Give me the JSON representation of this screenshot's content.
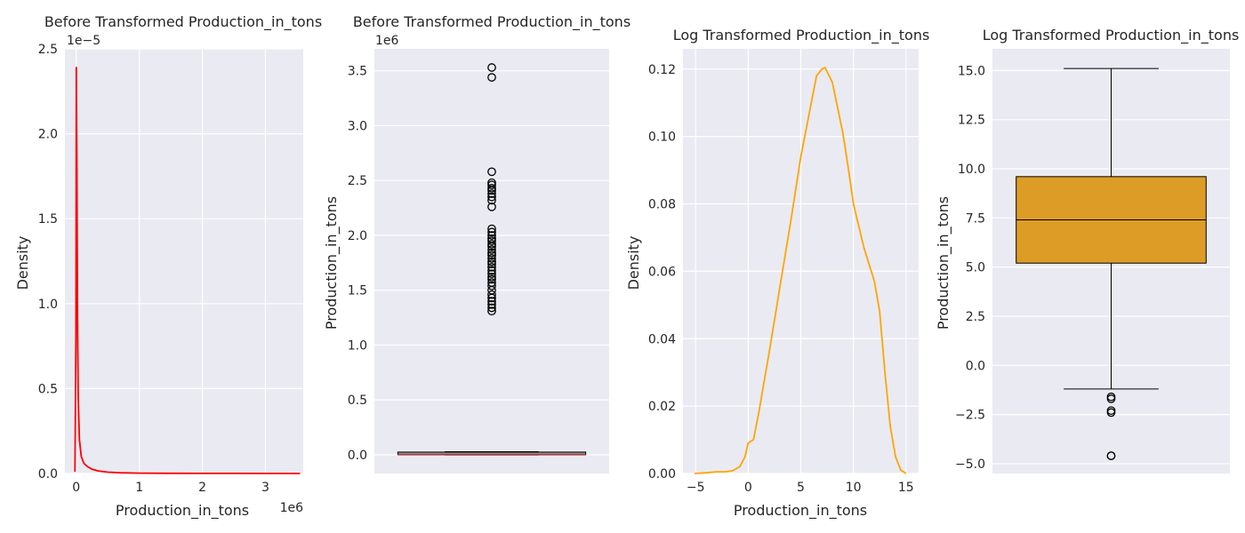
{
  "chart_data": [
    {
      "type": "line",
      "title": "Before Transformed Production_in_tons",
      "xlabel": "Production_in_tons",
      "ylabel": "Density",
      "x_offset_label": "1e6",
      "y_offset_label": "1e−5",
      "x_ticks": [
        0,
        1,
        2,
        3
      ],
      "x_tick_labels": [
        "0",
        "1",
        "2",
        "3"
      ],
      "y_ticks": [
        0,
        0.5,
        1.0,
        1.5,
        2.0,
        2.5
      ],
      "y_tick_labels": [
        "0.0",
        "0.5",
        "1.0",
        "1.5",
        "2.0",
        "2.5"
      ],
      "xlim": [
        -0.18,
        3.6
      ],
      "ylim": [
        0,
        2.5
      ],
      "grid": true,
      "color": "#ff0000",
      "series": [
        {
          "x": [
            -0.02,
            -0.005,
            0.0,
            0.01,
            0.02,
            0.03,
            0.05,
            0.08,
            0.12,
            0.18,
            0.25,
            0.35,
            0.5,
            0.7,
            1.0,
            1.5,
            2.0,
            2.5,
            3.0,
            3.55
          ],
          "y": [
            0.01,
            0.8,
            2.39,
            1.8,
            0.9,
            0.45,
            0.2,
            0.1,
            0.06,
            0.04,
            0.025,
            0.015,
            0.008,
            0.004,
            0.002,
            0.001,
            0.0005,
            0.0003,
            0.0002,
            0.0001
          ]
        }
      ]
    },
    {
      "type": "box",
      "title": "Before Transformed Production_in_tons",
      "ylabel": "Production_in_tons",
      "y_offset_label": "1e6",
      "y_ticks": [
        0,
        0.5,
        1.0,
        1.5,
        2.0,
        2.5,
        3.0,
        3.5
      ],
      "y_tick_labels": [
        "0.0",
        "0.5",
        "1.0",
        "1.5",
        "2.0",
        "2.5",
        "3.0",
        "3.5"
      ],
      "ylim": [
        -0.17,
        3.7
      ],
      "grid": true,
      "box": {
        "whisker_low": 0,
        "q1": 0.001,
        "median": 0.004,
        "q3": 0.025,
        "whisker_high": 0.028
      },
      "outliers": [
        3.53,
        3.44,
        2.58,
        2.48,
        2.46,
        2.43,
        2.41,
        2.38,
        2.35,
        2.32,
        2.26,
        2.06,
        2.03,
        2.0,
        1.97,
        1.95,
        1.92,
        1.9,
        1.87,
        1.84,
        1.82,
        1.79,
        1.76,
        1.74,
        1.71,
        1.68,
        1.65,
        1.62,
        1.6,
        1.57,
        1.54,
        1.5,
        1.46,
        1.43,
        1.4,
        1.37,
        1.34,
        1.31
      ]
    },
    {
      "type": "line",
      "title": "Log Transformed Production_in_tons",
      "xlabel": "Production_in_tons",
      "ylabel": "Density",
      "x_ticks": [
        -5,
        0,
        5,
        10,
        15
      ],
      "x_tick_labels": [
        "−5",
        "0",
        "5",
        "10",
        "15"
      ],
      "y_ticks": [
        0,
        0.02,
        0.04,
        0.06,
        0.08,
        0.1,
        0.12
      ],
      "y_tick_labels": [
        "0.00",
        "0.02",
        "0.04",
        "0.06",
        "0.08",
        "0.10",
        "0.12"
      ],
      "xlim": [
        -6.2,
        16.2
      ],
      "ylim": [
        0,
        0.126
      ],
      "grid": true,
      "color": "#ffa500",
      "series": [
        {
          "x": [
            -5.1,
            -4,
            -3,
            -2.2,
            -1.5,
            -0.8,
            -0.3,
            0.0,
            0.2,
            0.5,
            1.0,
            2.0,
            3.0,
            4.0,
            5.0,
            6.0,
            6.5,
            7.0,
            7.3,
            8.0,
            9.0,
            9.5,
            10.0,
            11.0,
            12.0,
            12.5,
            13.0,
            13.5,
            14.0,
            14.5,
            15.0
          ],
          "y": [
            0.0,
            0.0002,
            0.0005,
            0.0005,
            0.0008,
            0.002,
            0.005,
            0.009,
            0.0095,
            0.01,
            0.018,
            0.036,
            0.055,
            0.074,
            0.094,
            0.11,
            0.118,
            0.12,
            0.1205,
            0.116,
            0.101,
            0.091,
            0.08,
            0.067,
            0.057,
            0.048,
            0.03,
            0.014,
            0.005,
            0.001,
            0.0
          ]
        }
      ]
    },
    {
      "type": "box",
      "title": "Log Transformed Production_in_tons",
      "ylabel": "Production_in_tons",
      "y_ticks": [
        -5,
        -2.5,
        0,
        2.5,
        5,
        7.5,
        10,
        12.5,
        15
      ],
      "y_tick_labels": [
        "−5.0",
        "−2.5",
        "0.0",
        "2.5",
        "5.0",
        "7.5",
        "10.0",
        "12.5",
        "15.0"
      ],
      "ylim": [
        -5.5,
        16.1
      ],
      "grid": true,
      "color": "#dd9c25",
      "box": {
        "whisker_low": -1.2,
        "q1": 5.2,
        "median": 7.4,
        "q3": 9.6,
        "whisker_high": 15.1
      },
      "outliers": [
        -1.6,
        -1.7,
        -2.3,
        -2.4,
        -4.6,
        -4.6
      ]
    }
  ]
}
